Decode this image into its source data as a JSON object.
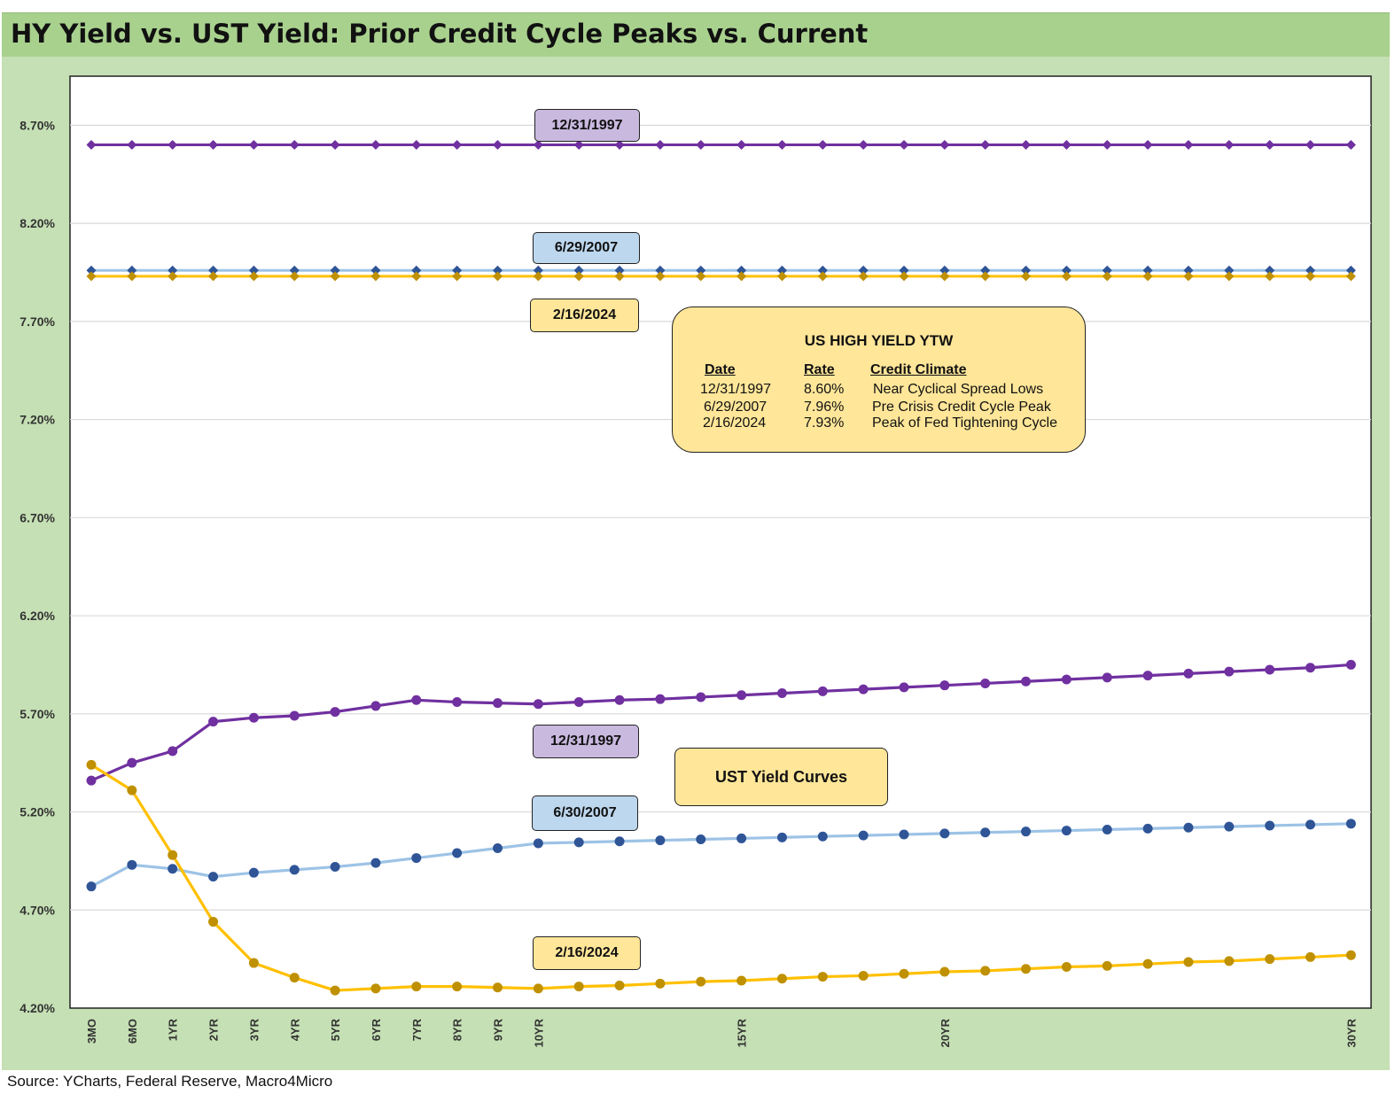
{
  "title": "HY Yield vs. UST Yield: Prior Credit Cycle Peaks vs. Current",
  "source": "Source: YCharts, Federal Reserve, Macro4Micro",
  "labels": {
    "hy_1997": "12/31/1997",
    "hy_2007": "6/29/2007",
    "hy_2024": "2/16/2024",
    "ust_1997": "12/31/1997",
    "ust_2007": "6/30/2007",
    "ust_2024": "2/16/2024"
  },
  "ytw_table": {
    "title": "US HIGH YIELD YTW",
    "headers": [
      "Date",
      "Rate",
      "Credit Climate"
    ],
    "rows": [
      [
        "12/31/1997",
        "8.60%",
        "Near Cyclical Spread Lows"
      ],
      [
        "6/29/2007",
        "7.96%",
        "Pre Crisis Credit Cycle Peak"
      ],
      [
        "2/16/2024",
        "7.93%",
        "Peak of Fed Tightening Cycle"
      ]
    ]
  },
  "ust_box": "UST Yield Curves",
  "colors": {
    "purple_line": "#7030a0",
    "purple_marker": "#7030a0",
    "blue_line": "#9dc3e6",
    "blue_marker": "#2f5597",
    "gold_line": "#ffc000",
    "gold_marker": "#bf9000"
  },
  "chart_data": {
    "type": "line",
    "title": "HY Yield vs. UST Yield: Prior Credit Cycle Peaks vs. Current",
    "ylim": [
      4.2,
      8.95
    ],
    "yticks": [
      "4.20%",
      "4.70%",
      "5.20%",
      "5.70%",
      "6.20%",
      "6.70%",
      "7.20%",
      "7.70%",
      "8.20%",
      "8.70%"
    ],
    "xtick_labels": [
      "3MO",
      "6MO",
      "1YR",
      "2YR",
      "3YR",
      "4YR",
      "5YR",
      "6YR",
      "7YR",
      "8YR",
      "9YR",
      "10YR",
      "15YR",
      "20YR",
      "30YR"
    ],
    "x": [
      "3MO",
      "6MO",
      "1YR",
      "2YR",
      "3YR",
      "4YR",
      "5YR",
      "6YR",
      "7YR",
      "8YR",
      "9YR",
      "10YR",
      "11YR",
      "12YR",
      "13YR",
      "14YR",
      "15YR",
      "16YR",
      "17YR",
      "18YR",
      "19YR",
      "20YR",
      "21YR",
      "22YR",
      "23YR",
      "24YR",
      "25YR",
      "26YR",
      "27YR",
      "28YR",
      "29YR",
      "30YR"
    ],
    "grid": true,
    "series": [
      {
        "name": "12/31/1997",
        "kind": "hy",
        "color_key": "purple",
        "values": [
          8.6,
          8.6,
          8.6,
          8.6,
          8.6,
          8.6,
          8.6,
          8.6,
          8.6,
          8.6,
          8.6,
          8.6,
          8.6,
          8.6,
          8.6,
          8.6,
          8.6,
          8.6,
          8.6,
          8.6,
          8.6,
          8.6,
          8.6,
          8.6,
          8.6,
          8.6,
          8.6,
          8.6,
          8.6,
          8.6,
          8.6,
          8.6
        ]
      },
      {
        "name": "6/29/2007",
        "kind": "hy",
        "color_key": "blue",
        "values": [
          7.96,
          7.96,
          7.96,
          7.96,
          7.96,
          7.96,
          7.96,
          7.96,
          7.96,
          7.96,
          7.96,
          7.96,
          7.96,
          7.96,
          7.96,
          7.96,
          7.96,
          7.96,
          7.96,
          7.96,
          7.96,
          7.96,
          7.96,
          7.96,
          7.96,
          7.96,
          7.96,
          7.96,
          7.96,
          7.96,
          7.96,
          7.96
        ]
      },
      {
        "name": "2/16/2024",
        "kind": "hy",
        "color_key": "gold",
        "values": [
          7.93,
          7.93,
          7.93,
          7.93,
          7.93,
          7.93,
          7.93,
          7.93,
          7.93,
          7.93,
          7.93,
          7.93,
          7.93,
          7.93,
          7.93,
          7.93,
          7.93,
          7.93,
          7.93,
          7.93,
          7.93,
          7.93,
          7.93,
          7.93,
          7.93,
          7.93,
          7.93,
          7.93,
          7.93,
          7.93,
          7.93,
          7.93
        ]
      },
      {
        "name": "12/31/1997",
        "kind": "ust",
        "color_key": "purple",
        "values": [
          5.36,
          5.45,
          5.51,
          5.66,
          5.68,
          5.69,
          5.71,
          5.74,
          5.77,
          5.76,
          5.755,
          5.75,
          5.76,
          5.77,
          5.775,
          5.785,
          5.795,
          5.805,
          5.815,
          5.825,
          5.835,
          5.845,
          5.855,
          5.865,
          5.875,
          5.885,
          5.895,
          5.905,
          5.915,
          5.925,
          5.935,
          5.95
        ]
      },
      {
        "name": "6/30/2007",
        "kind": "ust",
        "color_key": "blue",
        "values": [
          4.82,
          4.93,
          4.91,
          4.87,
          4.89,
          4.905,
          4.92,
          4.94,
          4.965,
          4.99,
          5.015,
          5.04,
          5.045,
          5.05,
          5.055,
          5.06,
          5.065,
          5.07,
          5.075,
          5.08,
          5.085,
          5.09,
          5.095,
          5.1,
          5.105,
          5.11,
          5.115,
          5.12,
          5.125,
          5.13,
          5.135,
          5.14
        ]
      },
      {
        "name": "2/16/2024",
        "kind": "ust",
        "color_key": "gold",
        "values": [
          5.44,
          5.31,
          4.98,
          4.64,
          4.43,
          4.355,
          4.29,
          4.3,
          4.31,
          4.31,
          4.305,
          4.3,
          4.31,
          4.315,
          4.325,
          4.335,
          4.34,
          4.35,
          4.36,
          4.365,
          4.375,
          4.385,
          4.39,
          4.4,
          4.41,
          4.415,
          4.425,
          4.435,
          4.44,
          4.45,
          4.46,
          4.47
        ]
      }
    ]
  }
}
